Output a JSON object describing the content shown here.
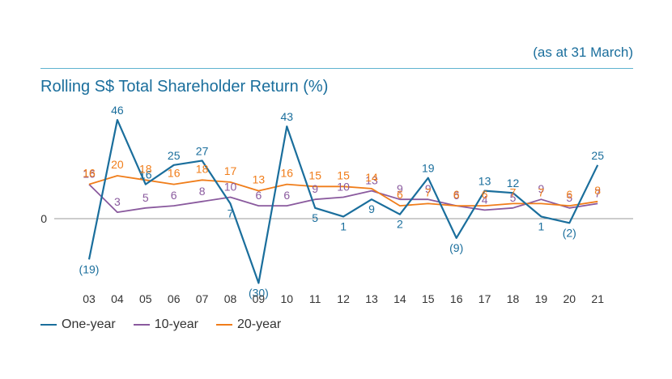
{
  "chart_data": {
    "type": "line",
    "title": "Rolling S$ Total Shareholder Return (%)",
    "subtitle": "(as at 31 March)",
    "categories": [
      "03",
      "04",
      "05",
      "06",
      "07",
      "08",
      "09",
      "10",
      "11",
      "12",
      "13",
      "14",
      "15",
      "16",
      "17",
      "18",
      "19",
      "20",
      "21"
    ],
    "ylim": [
      -30,
      50
    ],
    "zero_label": "0",
    "series": [
      {
        "name": "One-year",
        "color": "#1a6e9c",
        "values": [
          -19,
          46,
          16,
          25,
          27,
          7,
          -30,
          43,
          5,
          1,
          9,
          2,
          19,
          -9,
          13,
          12,
          1,
          -2,
          25
        ],
        "labels": [
          "(19)",
          "46",
          "16",
          "25",
          "27",
          "7",
          "(30)",
          "43",
          "5",
          "1",
          "9",
          "2",
          "19",
          "(9)",
          "13",
          "12",
          "1",
          "(2)",
          "25"
        ]
      },
      {
        "name": "10-year",
        "color": "#8a5a9e",
        "values": [
          16,
          3,
          5,
          6,
          8,
          10,
          6,
          6,
          9,
          10,
          13,
          9,
          9,
          6,
          4,
          5,
          9,
          5,
          7
        ],
        "labels": [
          "16",
          "3",
          "5",
          "6",
          "8",
          "10",
          "6",
          "6",
          "9",
          "10",
          "13",
          "9",
          "9",
          "6",
          "4",
          "5",
          "9",
          "5",
          "7"
        ]
      },
      {
        "name": "20-year",
        "color": "#f07d1a",
        "values": [
          16,
          20,
          18,
          16,
          18,
          17,
          13,
          16,
          15,
          15,
          14,
          6,
          7,
          6,
          6,
          7,
          7,
          6,
          8
        ],
        "labels": [
          "16",
          "20",
          "18",
          "16",
          "18",
          "17",
          "13",
          "16",
          "15",
          "15",
          "14",
          "6",
          "7",
          "6",
          "6",
          "7",
          "7",
          "6",
          "8"
        ]
      }
    ],
    "legend": {
      "position": "bottom-left"
    }
  }
}
